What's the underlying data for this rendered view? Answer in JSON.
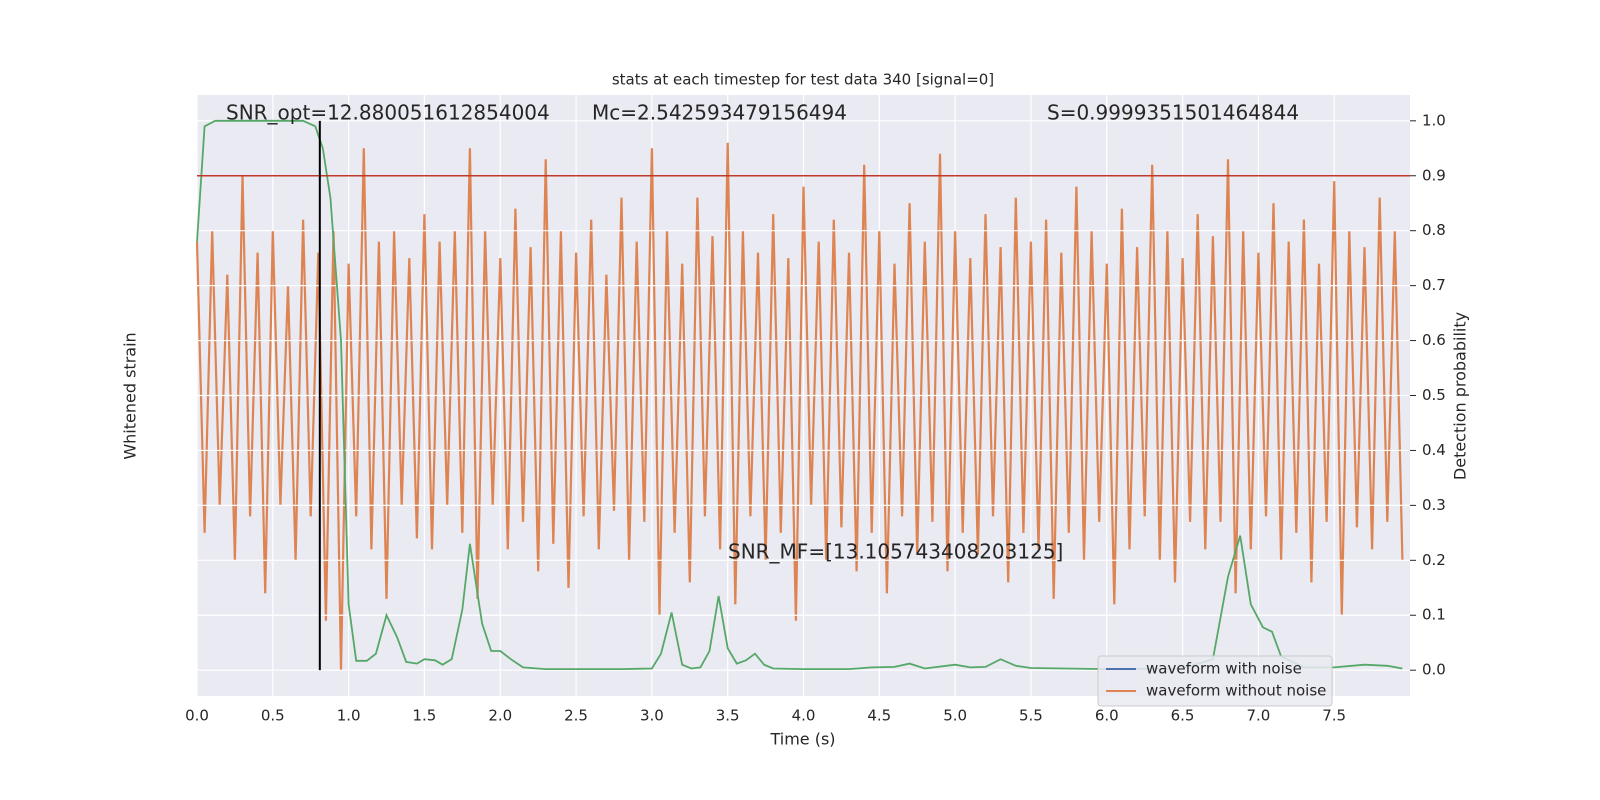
{
  "chart_data": {
    "type": "line",
    "title": "stats at each timestep for test data 340 [signal=0]",
    "xlabel": "Time (s)",
    "ylabel": "Whitened strain",
    "y2label": "Detection probability",
    "annotations": [
      "SNR_opt=12.880051612854004",
      "Mc=2.542593479156494",
      "S=0.9999351501464844",
      "SNR_MF=[13.105743408203125]"
    ],
    "xlim": [
      0,
      8
    ],
    "xticks": [
      {
        "value": 0,
        "label": "0.0"
      },
      0.5,
      {
        "value": 1,
        "label": "1.0"
      },
      1.5,
      {
        "value": 2,
        "label": "2.0"
      },
      2.5,
      {
        "value": 3,
        "label": "3.0"
      },
      3.5,
      {
        "value": 4,
        "label": "4.0"
      },
      4.5,
      {
        "value": 5,
        "label": "5.0"
      },
      5.5,
      {
        "value": 6,
        "label": "6.0"
      },
      6.5,
      {
        "value": 7,
        "label": "7.0"
      },
      7.5
    ],
    "y2lim": [
      -0.047,
      1.047
    ],
    "y2ticks": [
      {
        "value": 0,
        "label": "0.0"
      },
      0.1,
      0.2,
      0.3,
      0.4,
      0.5,
      0.6,
      0.7,
      0.8,
      0.9,
      {
        "value": 1,
        "label": "1.0"
      }
    ],
    "grid": true,
    "legend": "lower right",
    "threshold": {
      "value": 0.9,
      "color": "#c0392b"
    },
    "marker_time": {
      "value": 0.81,
      "color": "#000000"
    },
    "series": [
      {
        "name": "waveform with noise",
        "color": "#4c72b0"
      },
      {
        "name": "waveform without noise",
        "color": "#dd8452",
        "axis": "y2",
        "x": [
          0,
          0.05,
          0.1,
          0.15,
          0.2,
          0.25,
          0.3,
          0.35,
          0.4,
          0.45,
          0.5,
          0.55,
          0.6,
          0.65,
          0.7,
          0.75,
          0.8,
          0.85,
          0.9,
          0.95,
          1,
          1.05,
          1.1,
          1.15,
          1.2,
          1.25,
          1.3,
          1.35,
          1.4,
          1.45,
          1.5,
          1.55,
          1.6,
          1.65,
          1.7,
          1.75,
          1.8,
          1.85,
          1.9,
          1.95,
          2,
          2.05,
          2.1,
          2.15,
          2.2,
          2.25,
          2.3,
          2.35,
          2.4,
          2.45,
          2.5,
          2.55,
          2.6,
          2.65,
          2.7,
          2.75,
          2.8,
          2.85,
          2.9,
          2.95,
          3,
          3.05,
          3.1,
          3.15,
          3.2,
          3.25,
          3.3,
          3.35,
          3.4,
          3.45,
          3.5,
          3.55,
          3.6,
          3.65,
          3.7,
          3.75,
          3.8,
          3.85,
          3.9,
          3.95,
          4,
          4.05,
          4.1,
          4.15,
          4.2,
          4.25,
          4.3,
          4.35,
          4.4,
          4.45,
          4.5,
          4.55,
          4.6,
          4.65,
          4.7,
          4.75,
          4.8,
          4.85,
          4.9,
          4.95,
          5,
          5.05,
          5.1,
          5.15,
          5.2,
          5.25,
          5.3,
          5.35,
          5.4,
          5.45,
          5.5,
          5.55,
          5.6,
          5.65,
          5.7,
          5.75,
          5.8,
          5.85,
          5.9,
          5.95,
          6,
          6.05,
          6.1,
          6.15,
          6.2,
          6.25,
          6.3,
          6.35,
          6.4,
          6.45,
          6.5,
          6.55,
          6.6,
          6.65,
          6.7,
          6.75,
          6.8,
          6.85,
          6.9,
          6.95,
          7,
          7.05,
          7.1,
          7.15,
          7.2,
          7.25,
          7.3,
          7.35,
          7.4,
          7.45,
          7.5,
          7.55,
          7.6,
          7.65,
          7.7,
          7.75,
          7.8,
          7.85,
          7.9,
          7.95
        ],
        "values": [
          0.78,
          0.25,
          0.8,
          0.3,
          0.72,
          0.2,
          0.9,
          0.28,
          0.76,
          0.14,
          0.8,
          0.3,
          0.7,
          0.2,
          0.82,
          0.28,
          0.76,
          0.09,
          0.8,
          0.0,
          0.74,
          0.28,
          0.95,
          0.22,
          0.78,
          0.13,
          0.8,
          0.3,
          0.75,
          0.24,
          0.83,
          0.22,
          0.78,
          0.3,
          0.8,
          0.25,
          0.95,
          0.13,
          0.8,
          0.3,
          0.75,
          0.22,
          0.84,
          0.27,
          0.77,
          0.18,
          0.93,
          0.23,
          0.8,
          0.15,
          0.76,
          0.28,
          0.82,
          0.22,
          0.72,
          0.29,
          0.86,
          0.2,
          0.78,
          0.27,
          0.95,
          0.1,
          0.8,
          0.25,
          0.74,
          0.16,
          0.86,
          0.28,
          0.79,
          0.22,
          0.96,
          0.12,
          0.8,
          0.28,
          0.76,
          0.2,
          0.83,
          0.25,
          0.75,
          0.09,
          0.88,
          0.3,
          0.78,
          0.2,
          0.82,
          0.26,
          0.76,
          0.18,
          0.92,
          0.25,
          0.8,
          0.14,
          0.74,
          0.28,
          0.85,
          0.21,
          0.78,
          0.27,
          0.94,
          0.18,
          0.8,
          0.25,
          0.75,
          0.21,
          0.83,
          0.28,
          0.77,
          0.16,
          0.86,
          0.25,
          0.78,
          0.22,
          0.82,
          0.13,
          0.76,
          0.25,
          0.88,
          0.2,
          0.8,
          0.27,
          0.74,
          0.12,
          0.84,
          0.22,
          0.77,
          0.28,
          0.92,
          0.2,
          0.8,
          0.16,
          0.75,
          0.27,
          0.83,
          0.22,
          0.79,
          0.27,
          0.93,
          0.14,
          0.8,
          0.22,
          0.76,
          0.28,
          0.85,
          0.2,
          0.78,
          0.25,
          0.82,
          0.16,
          0.74,
          0.27,
          0.89,
          0.1,
          0.8,
          0.26,
          0.77,
          0.22,
          0.86,
          0.27,
          0.8,
          0.2
        ]
      },
      {
        "color": "#55a868",
        "axis": "y2",
        "x": [
          0,
          0.05,
          0.12,
          0.3,
          0.5,
          0.7,
          0.78,
          0.83,
          0.88,
          0.95,
          1.0,
          1.05,
          1.12,
          1.18,
          1.25,
          1.32,
          1.38,
          1.45,
          1.5,
          1.57,
          1.62,
          1.68,
          1.75,
          1.8,
          1.88,
          1.94,
          2.0,
          2.07,
          2.15,
          2.3,
          2.6,
          2.8,
          3.0,
          3.06,
          3.13,
          3.2,
          3.26,
          3.32,
          3.38,
          3.44,
          3.5,
          3.56,
          3.62,
          3.68,
          3.74,
          3.8,
          4.0,
          4.3,
          4.45,
          4.6,
          4.7,
          4.8,
          5.0,
          5.1,
          5.2,
          5.3,
          5.4,
          5.5,
          6.0,
          6.5,
          6.7,
          6.8,
          6.88,
          6.95,
          7.03,
          7.09,
          7.15,
          7.3,
          7.5,
          7.7,
          7.85,
          7.95
        ],
        "values": [
          0.78,
          0.99,
          1.0,
          1.0,
          1.0,
          1.0,
          0.99,
          0.95,
          0.86,
          0.6,
          0.12,
          0.017,
          0.017,
          0.03,
          0.1,
          0.06,
          0.015,
          0.012,
          0.02,
          0.018,
          0.01,
          0.02,
          0.11,
          0.23,
          0.085,
          0.035,
          0.035,
          0.02,
          0.005,
          0.002,
          0.002,
          0.002,
          0.003,
          0.03,
          0.105,
          0.01,
          0.003,
          0.005,
          0.035,
          0.135,
          0.04,
          0.012,
          0.018,
          0.03,
          0.01,
          0.003,
          0.002,
          0.002,
          0.005,
          0.006,
          0.012,
          0.003,
          0.01,
          0.005,
          0.006,
          0.02,
          0.008,
          0.004,
          0.002,
          0.003,
          0.02,
          0.17,
          0.245,
          0.12,
          0.078,
          0.07,
          0.025,
          0.005,
          0.005,
          0.01,
          0.008,
          0.003
        ]
      }
    ]
  }
}
